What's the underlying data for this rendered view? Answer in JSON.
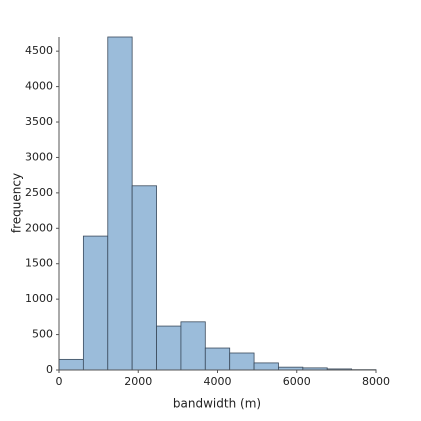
{
  "chart_data": {
    "type": "histogram",
    "xlabel": "bandwidth (m)",
    "ylabel": "frequency",
    "bins": [
      0,
      615,
      1231,
      1846,
      2462,
      3077,
      3692,
      4308,
      4923,
      5538,
      6154,
      6769,
      7385,
      8000
    ],
    "values": [
      150,
      1890,
      4700,
      2600,
      620,
      680,
      310,
      240,
      100,
      40,
      30,
      15,
      5
    ],
    "color": "#9bbcda",
    "edgecolor": "#3a4a5c",
    "xlim": [
      0,
      8000
    ],
    "xticks": [
      0,
      2000,
      4000,
      6000,
      8000
    ],
    "ylim": [
      0,
      4700
    ],
    "yticks": [
      0,
      500,
      1000,
      1500,
      2000,
      2500,
      3000,
      3500,
      4000,
      4500
    ]
  }
}
